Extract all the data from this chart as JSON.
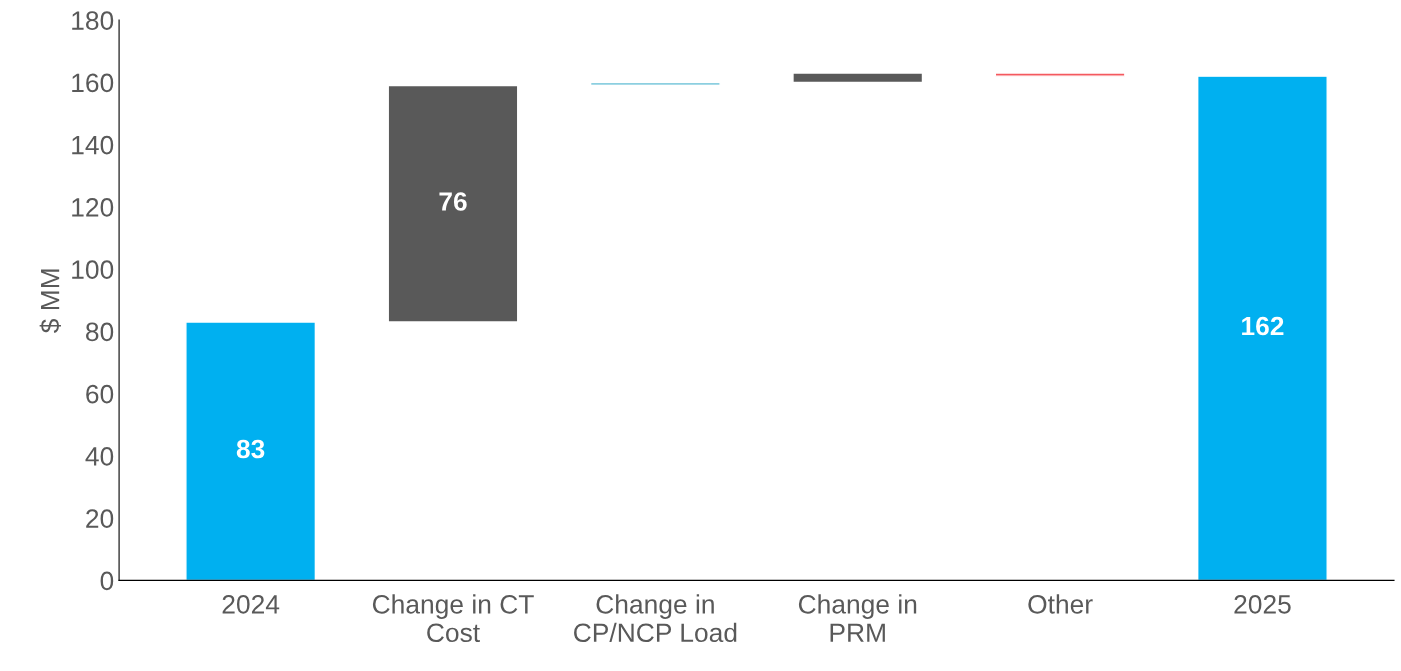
{
  "chart_data": {
    "type": "bar",
    "ylabel": "$ MM",
    "categories": [
      "2024",
      "Change in CT\nCost",
      "Change in\nCP/NCP Load",
      "Change in\nPRM",
      "Other",
      "2025"
    ],
    "values": [
      83,
      76,
      1,
      3,
      -1,
      162
    ],
    "base": [
      0,
      83,
      159,
      160,
      163,
      0
    ],
    "colors": [
      "#00b0f0",
      "#595959",
      "#8ccfe0",
      "#595959",
      "#f4595f",
      "#00b0f0"
    ],
    "value_labels": [
      "83",
      "76",
      null,
      null,
      null,
      "162"
    ],
    "ylim": [
      0,
      180
    ],
    "yticks": [
      0,
      20,
      40,
      60,
      80,
      100,
      120,
      140,
      160,
      180
    ],
    "grid": false
  }
}
